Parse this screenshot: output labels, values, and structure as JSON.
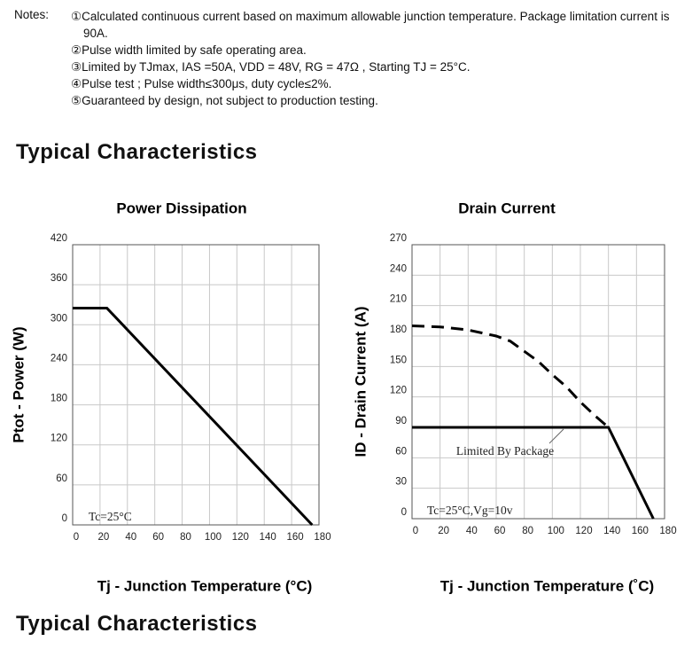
{
  "notes": {
    "label": "Notes:",
    "items": [
      "①Calculated continuous current based on maximum allowable  junction temperature. Package limitation current is 90A.",
      "②Pulse width limited by safe operating area.",
      "③Limited by TJmax, IAS =50A, VDD = 48V, RG = 47Ω , Starting TJ = 25°C.",
      "④Pulse test ; Pulse width≤300μs, duty cycle≤2%.",
      "⑤Guaranteed by design, not subject to production testing."
    ]
  },
  "headings": [
    "Typical Characteristics",
    "Typical Characteristics"
  ],
  "chart_data": [
    {
      "type": "line",
      "title": "Power Dissipation",
      "x_label": "Tj - Junction Temperature (°C)",
      "y_label": "Ptot - Power (W)",
      "xlim": [
        0,
        180
      ],
      "xticks": [
        0,
        20,
        40,
        60,
        80,
        100,
        120,
        140,
        160,
        180
      ],
      "ylim": [
        0,
        420
      ],
      "yticks": [
        0,
        60,
        120,
        180,
        240,
        300,
        360,
        420
      ],
      "grid": true,
      "series": [
        {
          "color": "#000000",
          "dashed": false,
          "x": [
            0,
            25,
            175
          ],
          "values": [
            325,
            325,
            0
          ]
        }
      ],
      "annotations": [
        "Tc=25°C"
      ]
    },
    {
      "type": "line",
      "title": "Drain Current",
      "x_label": "Tj - Junction Temperature (˚C)",
      "y_label": "ID - Drain Current (A)",
      "xlim": [
        0,
        180
      ],
      "xticks": [
        0,
        20,
        40,
        60,
        80,
        100,
        120,
        140,
        160,
        180
      ],
      "ylim": [
        0,
        270
      ],
      "yticks": [
        0,
        30,
        60,
        90,
        120,
        150,
        180,
        210,
        240,
        270
      ],
      "grid": true,
      "series": [
        {
          "color": "#000000",
          "dashed": true,
          "x": [
            0,
            20,
            40,
            60,
            70,
            80,
            90,
            100,
            110,
            120,
            130,
            140
          ],
          "values": [
            190,
            189,
            186,
            180,
            175,
            165,
            155,
            142,
            130,
            115,
            102,
            90
          ]
        },
        {
          "color": "#000000",
          "dashed": false,
          "x": [
            0,
            140,
            172
          ],
          "values": [
            90,
            90,
            0
          ]
        }
      ],
      "annotations": [
        "Limited By Package",
        "Tc=25°C,Vg=10v"
      ]
    }
  ]
}
